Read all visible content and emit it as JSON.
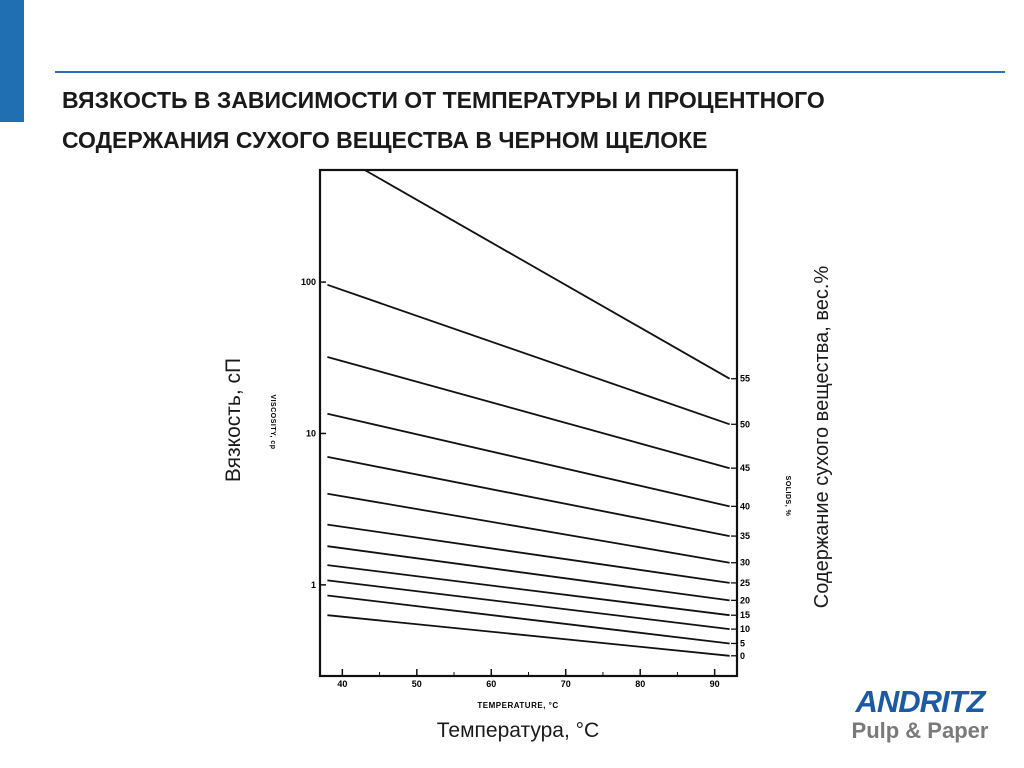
{
  "slide": {
    "title_line1": "ВЯЗКОСТЬ В ЗАВИСИМОСТИ ОТ ТЕМПЕРАТУРЫ И ПРОЦЕНТНОГО",
    "title_line2": "СОДЕРЖАНИЯ СУХОГО ВЕЩЕСТВА В ЧЕРНОМ ЩЕЛОКЕ",
    "accent_color": "#1f6fb2"
  },
  "logo": {
    "name": "ANDRITZ",
    "subtitle": "Pulp & Paper",
    "color": "#1d5aa6",
    "subtitle_color": "#7a7a7a"
  },
  "chart_data": {
    "type": "line",
    "xlabel": "TEMPERATURE, °C",
    "xlabel_ru": "Температура, °C",
    "ylabel": "VISCOSITY, cp",
    "ylabel_ru": "Вязкость, сП",
    "right_label": "SOLIDS, %",
    "right_label_ru": "Содержание сухого вещества, вес.%",
    "y_scale": "log",
    "xlim": [
      37,
      93
    ],
    "ylim": [
      0.25,
      550
    ],
    "x_ticks": [
      40,
      50,
      60,
      70,
      80,
      90
    ],
    "y_ticks": [
      {
        "value": 100,
        "label": "100"
      },
      {
        "value": 10,
        "label": "10"
      },
      {
        "value": 1,
        "label": "1"
      }
    ],
    "grid": false,
    "series": [
      {
        "name": "55",
        "x": [
          43,
          92
        ],
        "y": [
          550,
          23
        ]
      },
      {
        "name": "50",
        "x": [
          38,
          92
        ],
        "y": [
          96,
          11.5
        ]
      },
      {
        "name": "45",
        "x": [
          38,
          92
        ],
        "y": [
          32,
          5.9
        ]
      },
      {
        "name": "40",
        "x": [
          38,
          92
        ],
        "y": [
          13.5,
          3.3
        ]
      },
      {
        "name": "35",
        "x": [
          38,
          92
        ],
        "y": [
          7,
          2.1
        ]
      },
      {
        "name": "30",
        "x": [
          38,
          92
        ],
        "y": [
          4,
          1.4
        ]
      },
      {
        "name": "25",
        "x": [
          38,
          92
        ],
        "y": [
          2.5,
          1.03
        ]
      },
      {
        "name": "20",
        "x": [
          38,
          92
        ],
        "y": [
          1.8,
          0.79
        ]
      },
      {
        "name": "15",
        "x": [
          38,
          92
        ],
        "y": [
          1.35,
          0.63
        ]
      },
      {
        "name": "10",
        "x": [
          38,
          92
        ],
        "y": [
          1.07,
          0.51
        ]
      },
      {
        "name": "5",
        "x": [
          38,
          92
        ],
        "y": [
          0.85,
          0.41
        ]
      },
      {
        "name": "0",
        "x": [
          38,
          92
        ],
        "y": [
          0.63,
          0.34
        ]
      }
    ]
  }
}
